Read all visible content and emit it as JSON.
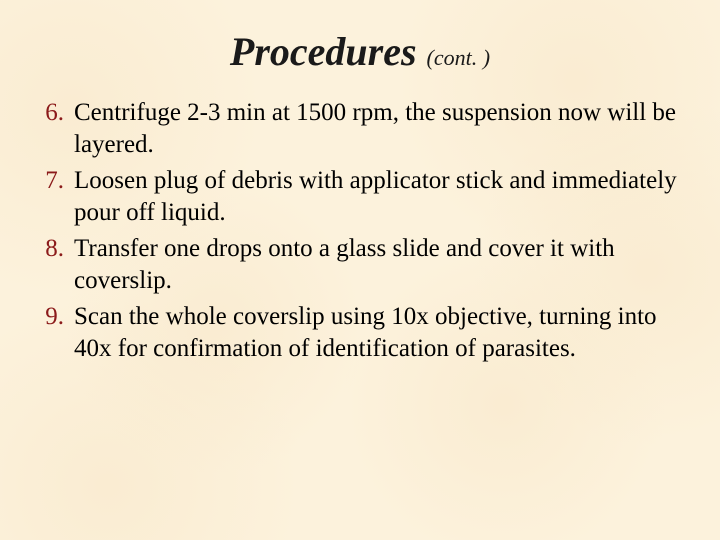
{
  "background_color": "#fcf2dc",
  "title": {
    "main": "Procedures",
    "suffix": "(cont. )",
    "main_fontsize": 40,
    "suffix_fontsize": 22,
    "color": "#1a1a1a",
    "italic": true,
    "bold_main": true
  },
  "list": {
    "start": 6,
    "number_color": "#8b1a1a",
    "text_color": "#000000",
    "fontsize": 25,
    "items": [
      {
        "n": "6.",
        "text": "Centrifuge 2-3 min at 1500 rpm, the suspension now will be layered."
      },
      {
        "n": "7.",
        "text": "Loosen plug of debris with applicator stick and immediately pour off liquid."
      },
      {
        "n": "8.",
        "text": "Transfer one drops onto a glass slide and cover it with coverslip."
      },
      {
        "n": "9.",
        "text": "Scan the whole coverslip using 10x objective, turning into 40x for confirmation of identification of parasites."
      }
    ]
  }
}
